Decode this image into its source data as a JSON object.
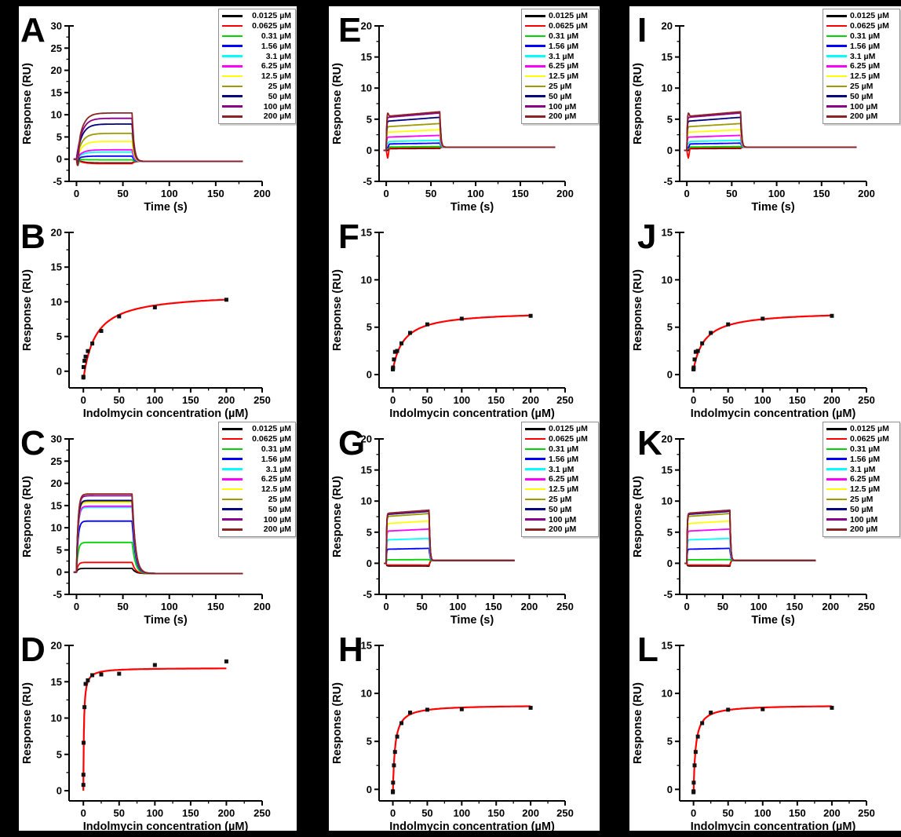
{
  "figure": {
    "background": "#000000",
    "panel_background": "#ffffff",
    "fit_color": "#ff0000",
    "marker_color": "#111111",
    "axis_color": "#000000"
  },
  "concentrations": [
    {
      "label": "0.0125 µM",
      "color": "#000000"
    },
    {
      "label": "0.0625 µM",
      "color": "#ff0000"
    },
    {
      "label": "0.31 µM",
      "color": "#00d400"
    },
    {
      "label": "1.56 µM",
      "color": "#0000ff"
    },
    {
      "label": "3.1 µM",
      "color": "#00ffff"
    },
    {
      "label": "6.25 µM",
      "color": "#ff00ff"
    },
    {
      "label": "12.5 µM",
      "color": "#ffff00"
    },
    {
      "label": "25 µM",
      "color": "#9b9b00"
    },
    {
      "label": "50 µM",
      "color": "#000080"
    },
    {
      "label": "100 µM",
      "color": "#8b008b"
    },
    {
      "label": "200 µM",
      "color": "#8b2525"
    }
  ],
  "chart_data": [
    {
      "panel_label": "A",
      "type": "sensorgram",
      "xlabel": "Time (s)",
      "ylabel": "Response (RU)",
      "xlim": [
        -8,
        200
      ],
      "ylim": [
        -5,
        30
      ],
      "xticks": [
        0,
        50,
        100,
        150,
        200
      ],
      "yticks": [
        -5,
        0,
        5,
        10,
        15,
        20,
        25,
        30
      ],
      "xminor": 25,
      "yminor": 2.5,
      "legend": true,
      "legend_align": "right",
      "t_assoc": 60,
      "t_end": 180,
      "residual": -0.5,
      "ka": 0.18,
      "kd": 0.5,
      "drift": 0,
      "plateaus": [
        -0.85,
        -1.0,
        -0.15,
        0.7,
        1.6,
        2.1,
        4.0,
        5.8,
        7.9,
        9.2,
        10.4
      ],
      "spikes": [
        -0.2,
        -0.3,
        -1.2,
        -0.9,
        -0.3,
        -0.2,
        0,
        0,
        0,
        0,
        -4.0
      ]
    },
    {
      "panel_label": "B",
      "type": "binding",
      "xlabel": "Indolmycin concentration (µM)",
      "ylabel": "Response (RU)",
      "xlim": [
        -20,
        250
      ],
      "ylim": [
        -2.4,
        20
      ],
      "xticks": [
        0,
        50,
        100,
        150,
        200,
        250
      ],
      "yticks": [
        0,
        5,
        10,
        15,
        20
      ],
      "xminor": 25,
      "yminor": 2.5,
      "legend": false,
      "points": [
        [
          0.0125,
          -0.9
        ],
        [
          0.0625,
          -0.8
        ],
        [
          0.31,
          0.6
        ],
        [
          1.56,
          1.5
        ],
        [
          3.1,
          2.1
        ],
        [
          6.25,
          2.9
        ],
        [
          12.5,
          4.0
        ],
        [
          25,
          5.8
        ],
        [
          50,
          7.9
        ],
        [
          100,
          9.2
        ],
        [
          200,
          10.3
        ]
      ],
      "fit": {
        "y0": -1.2,
        "rmax": 12.5,
        "kd": 17,
        "x_max": 200
      }
    },
    {
      "panel_label": "C",
      "type": "sensorgram",
      "xlabel": "Time (s)",
      "ylabel": "Response (RU)",
      "xlim": [
        -8,
        200
      ],
      "ylim": [
        -5,
        30
      ],
      "xticks": [
        0,
        50,
        100,
        150,
        200
      ],
      "yticks": [
        -5,
        0,
        5,
        10,
        15,
        20,
        25,
        30
      ],
      "xminor": 25,
      "yminor": 2.5,
      "legend": true,
      "legend_align": "right",
      "t_assoc": 60,
      "t_end": 180,
      "residual": -0.3,
      "ka": 0.6,
      "kd": 0.3,
      "drift": 0,
      "plateaus": [
        0.85,
        2.2,
        6.7,
        11.5,
        14.6,
        14.85,
        15.7,
        16.0,
        16.15,
        17.2,
        17.6
      ],
      "spikes": [
        0,
        0,
        0,
        0,
        0,
        0,
        0,
        0,
        0,
        0,
        0
      ]
    },
    {
      "panel_label": "D",
      "type": "binding",
      "xlabel": "Indolmycin concentration (µM)",
      "ylabel": "Response (RU)",
      "xlim": [
        -20,
        250
      ],
      "ylim": [
        -1.4,
        20
      ],
      "xticks": [
        0,
        50,
        100,
        150,
        200,
        250
      ],
      "yticks": [
        0,
        5,
        10,
        15,
        20
      ],
      "xminor": 25,
      "yminor": 2.5,
      "legend": false,
      "points": [
        [
          0.0125,
          0.8
        ],
        [
          0.0625,
          2.2
        ],
        [
          0.31,
          6.6
        ],
        [
          1.56,
          11.5
        ],
        [
          3.1,
          14.7
        ],
        [
          6.25,
          15.2
        ],
        [
          12.5,
          15.9
        ],
        [
          25,
          16.0
        ],
        [
          50,
          16.1
        ],
        [
          100,
          17.3
        ],
        [
          200,
          17.8
        ]
      ],
      "fit": {
        "y0": 0,
        "rmax": 16.9,
        "kd": 0.8,
        "x_max": 200
      }
    },
    {
      "panel_label": "E",
      "type": "sensorgram",
      "xlabel": "Time (s)",
      "ylabel": "Response (RU)",
      "xlim": [
        -8,
        200
      ],
      "ylim": [
        -5,
        20
      ],
      "xticks": [
        0,
        50,
        100,
        150,
        200
      ],
      "yticks": [
        -5,
        0,
        5,
        10,
        15,
        20
      ],
      "xminor": 25,
      "yminor": 2.5,
      "legend": true,
      "legend_align": "left",
      "t_assoc": 60,
      "t_end": 190,
      "residual": 0.5,
      "ka": 2.5,
      "kd": 1.0,
      "drift": 0.12,
      "plateaus": [
        0.3,
        0.4,
        0.6,
        1.15,
        1.6,
        2.4,
        3.3,
        4.3,
        5.3,
        6.0,
        6.2
      ],
      "spikes": [
        -0.3,
        -1.6,
        -0.2,
        -0.6,
        -0.3,
        0,
        0,
        0,
        0,
        0,
        0.6
      ]
    },
    {
      "panel_label": "F",
      "type": "binding",
      "xlabel": "Indolmycin concentration (µM)",
      "ylabel": "Response (RU)",
      "xlim": [
        -20,
        250
      ],
      "ylim": [
        -1.4,
        15
      ],
      "xticks": [
        0,
        50,
        100,
        150,
        200,
        250
      ],
      "yticks": [
        0,
        5,
        10,
        15
      ],
      "xminor": 25,
      "yminor": 2.5,
      "legend": false,
      "points": [
        [
          0.0125,
          0.55
        ],
        [
          0.0625,
          0.6
        ],
        [
          0.31,
          0.75
        ],
        [
          1.56,
          1.6
        ],
        [
          3.1,
          2.4
        ],
        [
          6.25,
          2.5
        ],
        [
          12.5,
          3.3
        ],
        [
          25,
          4.4
        ],
        [
          50,
          5.3
        ],
        [
          100,
          5.9
        ],
        [
          200,
          6.2
        ]
      ],
      "fit": {
        "y0": 0.5,
        "rmax": 6.2,
        "kd": 16,
        "x_max": 200
      }
    },
    {
      "panel_label": "G",
      "type": "sensorgram",
      "xlabel": "Time (s)",
      "ylabel": "Response (RU)",
      "xlim": [
        -10,
        250
      ],
      "ylim": [
        -5,
        20
      ],
      "xticks": [
        0,
        50,
        100,
        150,
        200,
        250
      ],
      "yticks": [
        -5,
        0,
        5,
        10,
        15,
        20
      ],
      "xminor": 25,
      "yminor": 2.5,
      "legend": true,
      "legend_align": "left",
      "t_assoc": 60,
      "t_end": 180,
      "residual": 0.45,
      "ka": 2.0,
      "kd": 1.0,
      "drift": 0.06,
      "plateaus": [
        -0.45,
        -0.3,
        0.6,
        2.4,
        4.0,
        5.5,
        6.8,
        8.0,
        8.35,
        8.45,
        8.55
      ],
      "spikes": [
        0,
        0,
        0,
        0,
        0,
        0,
        0,
        0,
        0,
        0,
        0
      ]
    },
    {
      "panel_label": "H",
      "type": "binding",
      "xlabel": "Indolmycin concentration (µM)",
      "ylabel": "Response (RU)",
      "xlim": [
        -20,
        250
      ],
      "ylim": [
        -1.2,
        15
      ],
      "xticks": [
        0,
        50,
        100,
        150,
        200,
        250
      ],
      "yticks": [
        0,
        5,
        10,
        15
      ],
      "xminor": 25,
      "yminor": 2.5,
      "legend": false,
      "points": [
        [
          0.0125,
          -0.3
        ],
        [
          0.0625,
          -0.2
        ],
        [
          0.31,
          0.7
        ],
        [
          1.56,
          2.5
        ],
        [
          3.1,
          3.9
        ],
        [
          6.25,
          5.5
        ],
        [
          12.5,
          6.9
        ],
        [
          25,
          8.0
        ],
        [
          50,
          8.3
        ],
        [
          100,
          8.35
        ],
        [
          200,
          8.5
        ]
      ],
      "fit": {
        "y0": -0.5,
        "rmax": 9.3,
        "kd": 3.0,
        "x_max": 200
      }
    },
    {
      "panel_label": "I",
      "type": "sensorgram",
      "xlabel": "Time (s)",
      "ylabel": "Response (RU)",
      "xlim": [
        -8,
        200
      ],
      "ylim": [
        -5,
        20
      ],
      "xticks": [
        0,
        50,
        100,
        150,
        200
      ],
      "yticks": [
        -5,
        0,
        5,
        10,
        15,
        20
      ],
      "xminor": 25,
      "yminor": 2.5,
      "legend": true,
      "legend_align": "left",
      "t_assoc": 60,
      "t_end": 190,
      "residual": 0.5,
      "ka": 2.5,
      "kd": 1.0,
      "drift": 0.12,
      "plateaus": [
        0.3,
        0.4,
        0.6,
        1.15,
        1.6,
        2.4,
        3.3,
        4.3,
        5.3,
        6.0,
        6.2
      ],
      "spikes": [
        -0.3,
        -1.6,
        -0.2,
        -0.6,
        -0.3,
        0,
        0,
        0,
        0,
        0,
        0.6
      ]
    },
    {
      "panel_label": "J",
      "type": "binding",
      "xlabel": "Indolmycin concentration (µM)",
      "ylabel": "Response (RU)",
      "xlim": [
        -20,
        250
      ],
      "ylim": [
        -1.4,
        15
      ],
      "xticks": [
        0,
        50,
        100,
        150,
        200,
        250
      ],
      "yticks": [
        0,
        5,
        10,
        15
      ],
      "xminor": 25,
      "yminor": 2.5,
      "legend": false,
      "points": [
        [
          0.0125,
          0.55
        ],
        [
          0.0625,
          0.6
        ],
        [
          0.31,
          0.75
        ],
        [
          1.56,
          1.6
        ],
        [
          3.1,
          2.4
        ],
        [
          6.25,
          2.5
        ],
        [
          12.5,
          3.3
        ],
        [
          25,
          4.4
        ],
        [
          50,
          5.3
        ],
        [
          100,
          5.9
        ],
        [
          200,
          6.2
        ]
      ],
      "fit": {
        "y0": 0.5,
        "rmax": 6.2,
        "kd": 16,
        "x_max": 200
      }
    },
    {
      "panel_label": "K",
      "type": "sensorgram",
      "xlabel": "Time (s)",
      "ylabel": "Response (RU)",
      "xlim": [
        -10,
        250
      ],
      "ylim": [
        -5,
        20
      ],
      "xticks": [
        0,
        50,
        100,
        150,
        200,
        250
      ],
      "yticks": [
        -5,
        0,
        5,
        10,
        15,
        20
      ],
      "xminor": 25,
      "yminor": 2.5,
      "legend": true,
      "legend_align": "left",
      "t_assoc": 60,
      "t_end": 180,
      "residual": 0.45,
      "ka": 2.0,
      "kd": 1.0,
      "drift": 0.06,
      "plateaus": [
        -0.45,
        -0.3,
        0.6,
        2.4,
        4.0,
        5.5,
        6.8,
        8.0,
        8.35,
        8.45,
        8.55
      ],
      "spikes": [
        0,
        0,
        0,
        0,
        0,
        0,
        0,
        0,
        0,
        0,
        0
      ]
    },
    {
      "panel_label": "L",
      "type": "binding",
      "xlabel": "Indolmycin concentration (µM)",
      "ylabel": "Response (RU)",
      "xlim": [
        -20,
        250
      ],
      "ylim": [
        -1.2,
        15
      ],
      "xticks": [
        0,
        50,
        100,
        150,
        200,
        250
      ],
      "yticks": [
        0,
        5,
        10,
        15
      ],
      "xminor": 25,
      "yminor": 2.5,
      "legend": false,
      "points": [
        [
          0.0125,
          -0.3
        ],
        [
          0.0625,
          -0.2
        ],
        [
          0.31,
          0.7
        ],
        [
          1.56,
          2.5
        ],
        [
          3.1,
          3.9
        ],
        [
          6.25,
          5.5
        ],
        [
          12.5,
          6.9
        ],
        [
          25,
          8.0
        ],
        [
          50,
          8.3
        ],
        [
          100,
          8.35
        ],
        [
          200,
          8.5
        ]
      ],
      "fit": {
        "y0": -0.5,
        "rmax": 9.3,
        "kd": 3.0,
        "x_max": 200
      }
    }
  ]
}
